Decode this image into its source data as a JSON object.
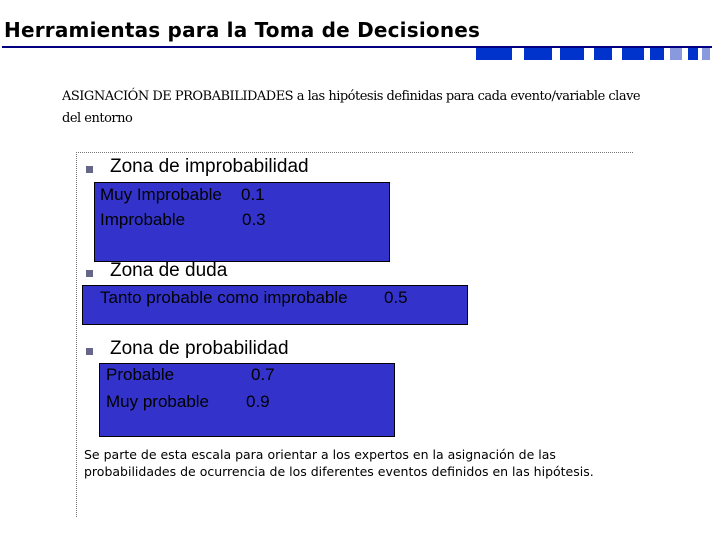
{
  "slide": {
    "title": "Herramientas para la Toma de Decisiones",
    "subtitle": "ASIGNACIÓN DE PROBABILIDADES a las hipótesis definidas para cada evento/variable clave del entorno"
  },
  "zones": [
    {
      "label": "Zona de improbabilidad",
      "items": [
        {
          "name": "Muy Improbable",
          "value": "0.1"
        },
        {
          "name": "Improbable",
          "value": "0.3"
        }
      ]
    },
    {
      "label": "Zona de duda",
      "items": [
        {
          "name": "Tanto probable como improbable",
          "value": "0.5"
        }
      ]
    },
    {
      "label": "Zona de probabilidad",
      "items": [
        {
          "name": "Probable",
          "value": "0.7"
        },
        {
          "name": "Muy probable",
          "value": "0.9"
        }
      ]
    }
  ],
  "note": "Se parte de esta escala para orientar a los expertos en la asignación de las probabilidades de ocurrencia de los diferentes eventos definidos en las hipótesis.",
  "colors": {
    "box_fill": "#3333cc",
    "title_rule": "#000080",
    "decoration": "#0033cc"
  }
}
